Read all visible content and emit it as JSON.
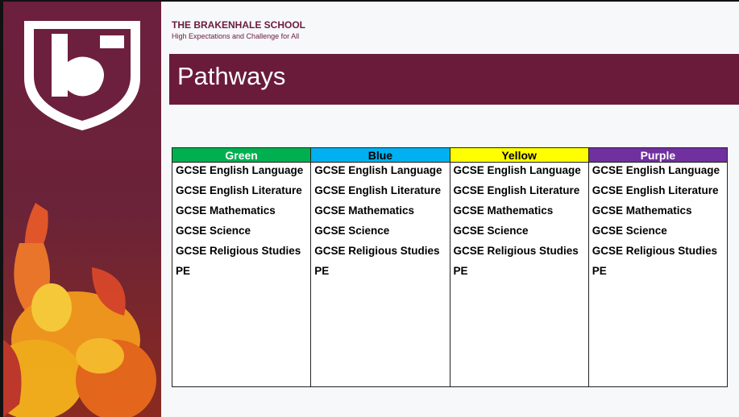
{
  "header": {
    "school": "THE BRAKENHALE SCHOOL",
    "tagline": "High Expectations and Challenge for All"
  },
  "title": "Pathways",
  "table": {
    "columns": [
      {
        "name": "Green",
        "color": "#00b050",
        "text_color": "#ffffff",
        "items": [
          "GCSE English Language",
          "GCSE English Literature",
          "GCSE Mathematics",
          "GCSE Science",
          "GCSE Religious Studies",
          "PE"
        ]
      },
      {
        "name": "Blue",
        "color": "#00b0f0",
        "text_color": "#000000",
        "items": [
          "GCSE English Language",
          "GCSE English Literature",
          "GCSE Mathematics",
          "GCSE Science",
          "GCSE Religious Studies",
          "PE"
        ]
      },
      {
        "name": "Yellow",
        "color": "#ffff00",
        "text_color": "#000000",
        "items": [
          "GCSE English Language",
          "GCSE English Literature",
          "GCSE Mathematics",
          "GCSE Science",
          "GCSE Religious Studies",
          "PE"
        ]
      },
      {
        "name": "Purple",
        "color": "#7030a0",
        "text_color": "#ffffff",
        "items": [
          "GCSE English Language",
          "GCSE English Literature",
          "GCSE Mathematics",
          "GCSE Science",
          "GCSE Religious Studies",
          "PE"
        ]
      }
    ]
  }
}
